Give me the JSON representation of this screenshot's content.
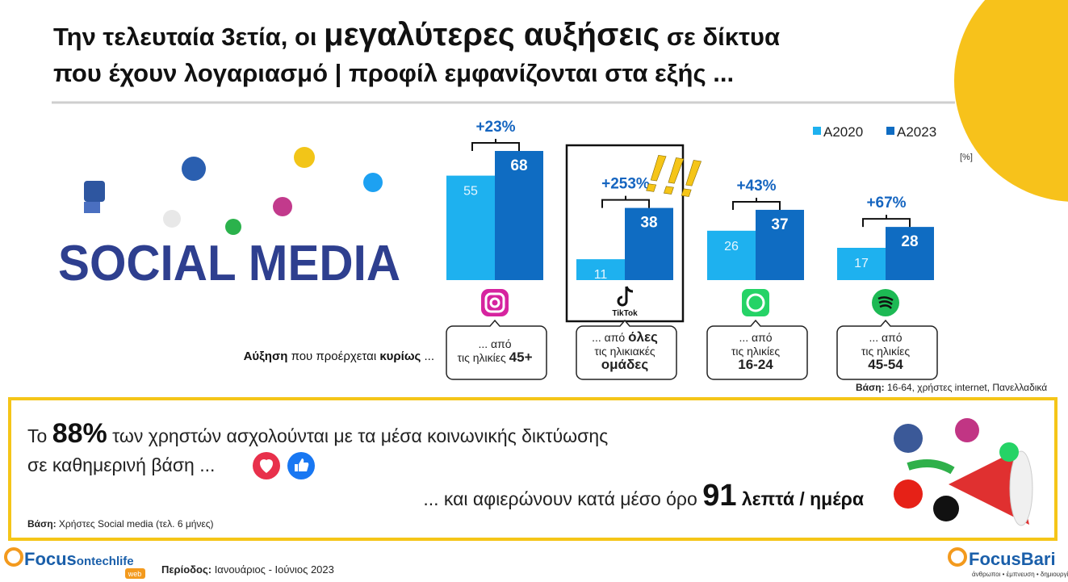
{
  "title": {
    "line1": [
      "Την τελευταία 3ετία, οι ",
      "μεγαλύτερες αυξήσεις",
      " σε δίκτυα"
    ],
    "line2": [
      "που έχουν λογαριασμό | προφίλ εμφανίζονται στα εξής ..."
    ]
  },
  "illustration": {
    "text": "SOCIAL MEDIA"
  },
  "chart_data": {
    "type": "bar",
    "categories": [
      null,
      "TikTok",
      null,
      null
    ],
    "series": [
      {
        "name": "A2020",
        "color": "#1eb1ef",
        "values": [
          55,
          11,
          26,
          17
        ]
      },
      {
        "name": "A2023",
        "color": "#0f6cc2",
        "values": [
          68,
          38,
          37,
          28
        ]
      }
    ],
    "growth_labels": [
      "+23%",
      "+253%",
      "+43%",
      "+67%"
    ],
    "highlight_note": "!!!",
    "unit": "[%]",
    "legend": "top-right",
    "lead_label": [
      "Αύξηση",
      " που προέρχεται ",
      "κυρίως",
      " ..."
    ],
    "callouts": [
      [
        [
          "... από"
        ],
        [
          "τις ηλικίες ",
          "45+"
        ]
      ],
      [
        [
          "... από ",
          "όλες"
        ],
        [
          "τις ηλικιακές"
        ],
        [
          "ομάδες"
        ]
      ],
      [
        [
          "... από"
        ],
        [
          "τις ηλικίες"
        ],
        [
          "16-24"
        ]
      ],
      [
        [
          "... από"
        ],
        [
          "τις ηλικίες"
        ],
        [
          "45-54"
        ]
      ]
    ],
    "base": [
      "Βάση:",
      " 16-64, χρήστες internet, Πανελλαδικά"
    ]
  },
  "summary": {
    "line1": [
      "Το ",
      "88%",
      " των χρηστών ασχολούνται με τα μέσα κοινωνικής δικτύωσης"
    ],
    "line2": [
      "σε καθημερινή βάση ..."
    ],
    "line3": [
      "... και αφιερώνουν κατά μέσο όρο ",
      "91",
      " λεπτά / ημέρα"
    ],
    "base": [
      "Βάση:",
      " Χρήστες Social media (τελ. 6 μήνες)"
    ]
  },
  "footer": {
    "left_logo": [
      "Focus",
      "ontechlife"
    ],
    "left_badge": "web",
    "period": [
      "Περίοδος:",
      " Ιανουάριος - Ιούνιος 2023"
    ],
    "right_logo": "FocusBari",
    "right_tagline": "άνθρωποι • έμπνευση • δημιουργία"
  }
}
